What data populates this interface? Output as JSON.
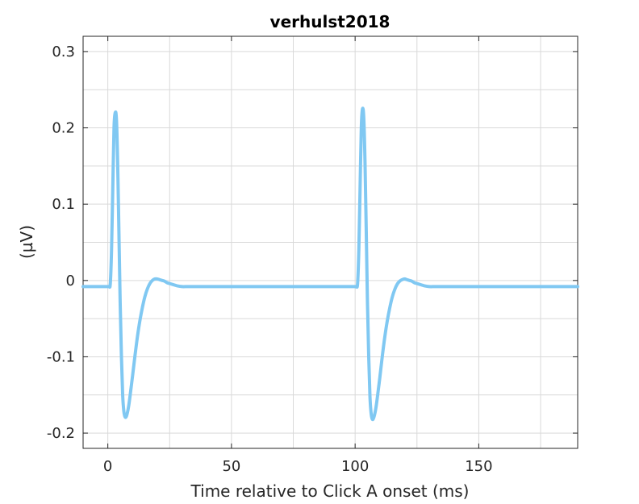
{
  "chart_data": {
    "type": "line",
    "title": "verhulst2018",
    "xlabel": "Time relative to Click A onset (ms)",
    "ylabel": "(µV)",
    "xlim": [
      -10,
      190
    ],
    "ylim": [
      -0.22,
      0.32
    ],
    "xticks": [
      0,
      50,
      100,
      150
    ],
    "xtick_labels": [
      "0",
      "50",
      "100",
      "150"
    ],
    "yticks": [
      -0.2,
      -0.1,
      0,
      0.1,
      0.2,
      0.3
    ],
    "ytick_labels": [
      "-0.2",
      "-0.1",
      "0",
      "0.1",
      "0.2",
      "0.3"
    ],
    "grid": true,
    "series": [
      {
        "color": "#80c8f2",
        "x": [
          -10,
          0,
          0.5,
          1,
          1.5,
          2,
          2.5,
          3,
          3.5,
          4,
          4.5,
          5,
          5.5,
          6,
          6.5,
          7,
          7.5,
          8,
          8.5,
          9,
          10,
          11,
          12,
          13,
          14,
          15,
          16,
          17,
          18,
          19,
          20,
          21,
          22,
          23,
          24,
          25,
          26,
          27,
          28,
          30,
          32,
          34,
          36,
          38,
          40,
          45,
          50,
          60,
          70,
          80,
          90,
          99.9,
          100,
          100.5,
          101,
          101.5,
          102,
          102.5,
          103,
          103.5,
          104,
          104.5,
          105,
          105.5,
          106,
          106.5,
          107,
          107.5,
          108,
          108.5,
          109,
          110,
          111,
          112,
          113,
          114,
          115,
          116,
          117,
          118,
          119,
          120,
          121,
          122,
          123,
          124,
          125,
          126,
          127,
          128,
          130,
          132,
          134,
          136,
          138,
          140,
          145,
          150,
          160,
          170,
          180,
          190
        ],
        "y": [
          -0.008,
          -0.008,
          -0.008,
          -0.004,
          0.04,
          0.12,
          0.2,
          0.22,
          0.21,
          0.15,
          0.06,
          -0.03,
          -0.1,
          -0.15,
          -0.172,
          -0.179,
          -0.178,
          -0.172,
          -0.163,
          -0.151,
          -0.125,
          -0.098,
          -0.073,
          -0.052,
          -0.035,
          -0.021,
          -0.011,
          -0.004,
          0.0,
          0.002,
          0.002,
          0.001,
          0.0,
          -0.001,
          -0.003,
          -0.004,
          -0.005,
          -0.006,
          -0.007,
          -0.008,
          -0.008,
          -0.008,
          -0.008,
          -0.008,
          -0.008,
          -0.008,
          -0.008,
          -0.008,
          -0.008,
          -0.008,
          -0.008,
          -0.008,
          -0.008,
          -0.008,
          -0.004,
          0.04,
          0.12,
          0.2,
          0.225,
          0.213,
          0.155,
          0.065,
          -0.03,
          -0.1,
          -0.152,
          -0.175,
          -0.182,
          -0.18,
          -0.174,
          -0.165,
          -0.153,
          -0.127,
          -0.099,
          -0.074,
          -0.053,
          -0.036,
          -0.022,
          -0.012,
          -0.005,
          -0.001,
          0.001,
          0.002,
          0.001,
          0.0,
          -0.001,
          -0.003,
          -0.004,
          -0.005,
          -0.006,
          -0.007,
          -0.008,
          -0.008,
          -0.008,
          -0.008,
          -0.008,
          -0.008,
          -0.008,
          -0.008,
          -0.008,
          -0.008,
          -0.008,
          -0.008
        ]
      }
    ]
  }
}
